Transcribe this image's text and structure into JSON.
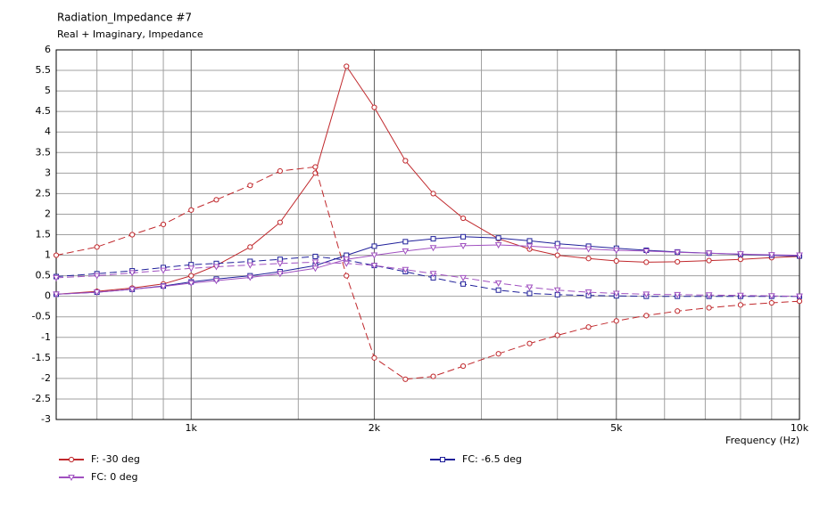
{
  "chart_data": {
    "type": "line",
    "title": "Radiation_Impedance #7",
    "subtitle": "Real + Imaginary, Impedance",
    "x_label": "Frequency  (Hz)",
    "xscale": "log",
    "grid": true,
    "xlim": [
      600,
      10000
    ],
    "xticks": [
      {
        "value": 1000,
        "label": "1k"
      },
      {
        "value": 2000,
        "label": "2k"
      },
      {
        "value": 5000,
        "label": "5k"
      },
      {
        "value": 10000,
        "label": "10k"
      }
    ],
    "xminor": [
      700,
      800,
      900,
      1500,
      3000,
      4000,
      6000,
      7000,
      8000,
      9000
    ],
    "ylim": [
      -3,
      6
    ],
    "yticks": [
      -3,
      -2.5,
      -2,
      -1.5,
      -1,
      -0.5,
      0,
      0.5,
      1,
      1.5,
      2,
      2.5,
      3,
      3.5,
      4,
      4.5,
      5,
      5.5,
      6
    ],
    "x": [
      600,
      700,
      800,
      900,
      1000,
      1100,
      1250,
      1400,
      1600,
      1800,
      2000,
      2250,
      2500,
      2800,
      3200,
      3600,
      4000,
      4500,
      5000,
      5600,
      6300,
      7100,
      8000,
      9000,
      10000
    ],
    "series": [
      {
        "name": "F: -30 deg",
        "color": "#c0282c",
        "marker": "circle",
        "real": [
          0.05,
          0.12,
          0.2,
          0.3,
          0.5,
          0.75,
          1.2,
          1.8,
          3.0,
          5.6,
          4.6,
          3.3,
          2.5,
          1.9,
          1.4,
          1.15,
          1.0,
          0.92,
          0.86,
          0.83,
          0.84,
          0.87,
          0.9,
          0.94,
          0.97
        ],
        "imag": [
          1.0,
          1.2,
          1.5,
          1.75,
          2.1,
          2.35,
          2.7,
          3.05,
          3.15,
          0.5,
          -1.5,
          -2.02,
          -1.95,
          -1.7,
          -1.4,
          -1.15,
          -0.95,
          -0.75,
          -0.6,
          -0.47,
          -0.36,
          -0.28,
          -0.21,
          -0.16,
          -0.12
        ]
      },
      {
        "name": "FC: -6.5 deg",
        "color": "#20209a",
        "marker": "square",
        "real": [
          0.05,
          0.1,
          0.17,
          0.25,
          0.35,
          0.42,
          0.5,
          0.6,
          0.75,
          1.0,
          1.22,
          1.33,
          1.4,
          1.45,
          1.42,
          1.35,
          1.28,
          1.22,
          1.17,
          1.12,
          1.08,
          1.05,
          1.02,
          1.0,
          0.98
        ],
        "imag": [
          0.48,
          0.55,
          0.62,
          0.7,
          0.77,
          0.8,
          0.85,
          0.9,
          0.97,
          0.88,
          0.75,
          0.6,
          0.45,
          0.3,
          0.15,
          0.07,
          0.04,
          0.02,
          0.01,
          0,
          0,
          0,
          0,
          0,
          0
        ]
      },
      {
        "name": "FC: 0 deg",
        "color": "#a050c0",
        "marker": "triangle",
        "real": [
          0.05,
          0.1,
          0.17,
          0.24,
          0.32,
          0.38,
          0.46,
          0.55,
          0.68,
          0.9,
          1.0,
          1.1,
          1.18,
          1.23,
          1.25,
          1.22,
          1.18,
          1.15,
          1.12,
          1.1,
          1.07,
          1.05,
          1.03,
          1.01,
          1.0
        ],
        "imag": [
          0.45,
          0.5,
          0.57,
          0.63,
          0.68,
          0.72,
          0.76,
          0.8,
          0.83,
          0.8,
          0.75,
          0.65,
          0.55,
          0.45,
          0.32,
          0.22,
          0.15,
          0.1,
          0.07,
          0.05,
          0.04,
          0.03,
          0.02,
          0.01,
          0
        ]
      }
    ]
  }
}
